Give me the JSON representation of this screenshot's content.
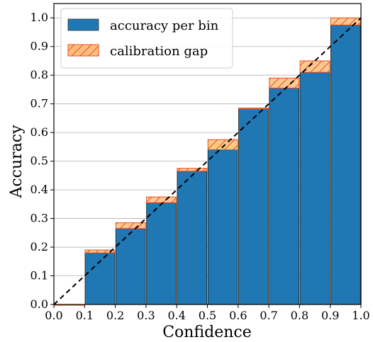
{
  "chart_data": {
    "type": "bar",
    "xlabel": "Confidence",
    "ylabel": "Accuracy",
    "xlim": [
      0.0,
      1.0
    ],
    "ylim": [
      0.0,
      1.05
    ],
    "grid": true,
    "legend_position": "top-left",
    "x_ticks": [
      "0.0",
      "0.1",
      "0.2",
      "0.3",
      "0.4",
      "0.5",
      "0.6",
      "0.7",
      "0.8",
      "0.9",
      "1.0"
    ],
    "y_ticks": [
      "0.0",
      "0.1",
      "0.2",
      "0.3",
      "0.4",
      "0.5",
      "0.6",
      "0.7",
      "0.8",
      "0.9",
      "1.0"
    ],
    "bin_edges": [
      0.0,
      0.1,
      0.2,
      0.3,
      0.4,
      0.5,
      0.6,
      0.7,
      0.8,
      0.9,
      1.0
    ],
    "series": [
      {
        "name": "accuracy per bin",
        "color": "#1f77b4",
        "values": [
          0.0,
          0.18,
          0.265,
          0.355,
          0.465,
          0.54,
          0.685,
          0.755,
          0.81,
          0.975
        ]
      },
      {
        "name": "calibration gap",
        "color": "#ffbe7d",
        "edge_color": "#e4501e",
        "hatch": "diagonal",
        "bin_mid_confidence": [
          0.0,
          0.19,
          0.285,
          0.375,
          0.475,
          0.575,
          0.685,
          0.79,
          0.85,
          1.0
        ]
      }
    ],
    "reference_line": {
      "style": "dashed",
      "color": "#000000",
      "from": [
        0.0,
        0.0
      ],
      "to": [
        1.0,
        1.0
      ]
    }
  }
}
